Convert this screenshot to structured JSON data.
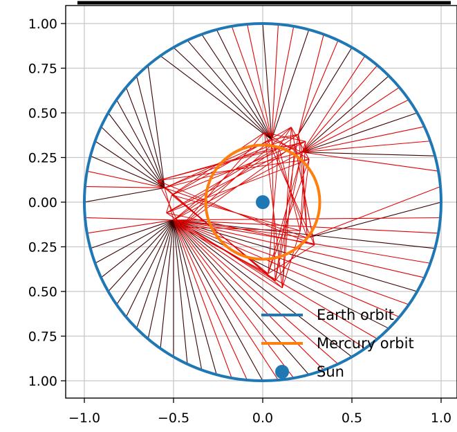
{
  "chart_data": {
    "type": "line",
    "title": "",
    "xlabel": "",
    "ylabel": "",
    "xlim": [
      -1.1,
      1.1
    ],
    "ylim": [
      -1.1,
      1.1
    ],
    "x_ticks": [
      -1.0,
      -0.5,
      0.0,
      0.5,
      1.0
    ],
    "x_tick_labels": [
      "−1.0",
      "−0.5",
      "0.0",
      "0.5",
      "1.0"
    ],
    "y_ticks": [
      1.0,
      0.75,
      0.5,
      0.25,
      0.0,
      -0.25,
      -0.5,
      -0.75,
      -1.0
    ],
    "y_tick_labels": [
      "1.00",
      "0.75",
      "0.50",
      "0.25",
      "0.00",
      "0.25",
      "0.50",
      "0.75",
      "1.00"
    ],
    "grid": true,
    "legend_position": "lower-right",
    "series": [
      {
        "name": "Earth orbit",
        "kind": "circle",
        "center": [
          0,
          0
        ],
        "radius": 1.0,
        "color": "#1f77b4"
      },
      {
        "name": "Mercury orbit",
        "kind": "circle",
        "center": [
          0,
          0
        ],
        "radius": 0.32,
        "color": "#ff7f0e"
      },
      {
        "name": "Sun",
        "kind": "point",
        "x": 0.0,
        "y": 0.0,
        "color": "#1f77b4"
      }
    ],
    "sight_lines": {
      "count": 72,
      "start_angle_deg": 0,
      "step_deg": 5,
      "cluster_points": [
        [
          -0.55,
          0.08
        ],
        [
          0.2,
          0.38
        ],
        [
          0.22,
          0.28
        ],
        [
          0.07,
          -0.44
        ],
        [
          -0.5,
          -0.1
        ],
        [
          0.25,
          -0.2
        ],
        [
          0.05,
          0.35
        ]
      ],
      "red_color": "#e00000",
      "dark_color": "#3a0000"
    },
    "legend": [
      {
        "label": "Earth orbit",
        "marker": "line",
        "color": "#1f77b4"
      },
      {
        "label": "Mercury orbit",
        "marker": "line",
        "color": "#ff7f0e"
      },
      {
        "label": "Sun",
        "marker": "dot",
        "color": "#1f77b4"
      }
    ]
  }
}
